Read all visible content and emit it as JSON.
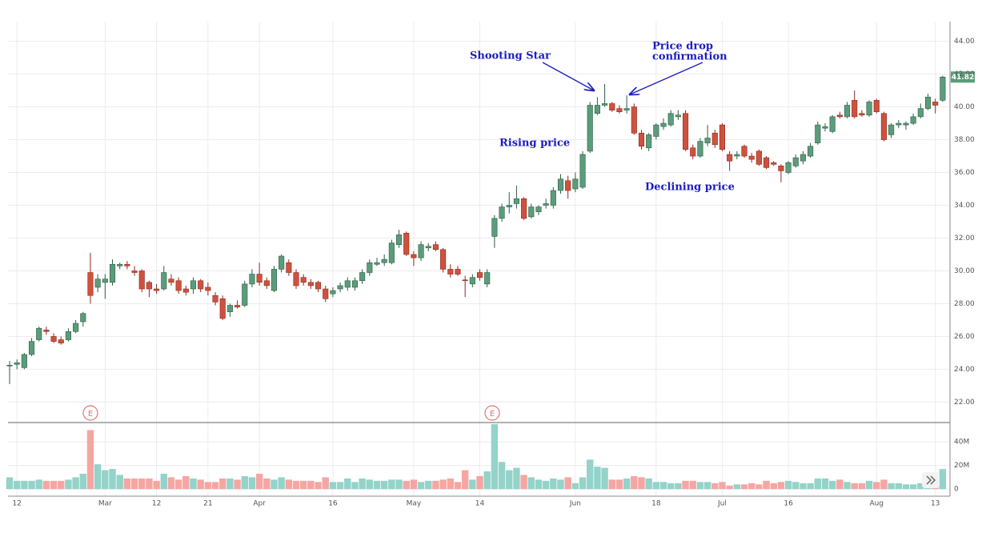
{
  "chart_data": [
    {
      "type": "candlestick",
      "up_color": "#5b9c7a",
      "down_color": "#d0513d",
      "ylim": [
        20.8,
        45.2
      ],
      "yticks": [
        {
          "value": 22,
          "label": "22.00"
        },
        {
          "value": 24,
          "label": "24.00"
        },
        {
          "value": 26,
          "label": "26.00"
        },
        {
          "value": 28,
          "label": "28.00"
        },
        {
          "value": 30,
          "label": "30.00"
        },
        {
          "value": 32,
          "label": "32.00"
        },
        {
          "value": 34,
          "label": "34.00"
        },
        {
          "value": 36,
          "label": "36.00"
        },
        {
          "value": 38,
          "label": "38.00"
        },
        {
          "value": 40,
          "label": "40.00"
        },
        {
          "value": 42,
          "label": "42.00"
        },
        {
          "value": 44,
          "label": "44.00"
        }
      ],
      "grid": true,
      "last_price": 41.82,
      "annotations": [
        "Shooting Star",
        "Price drop",
        "confirmation",
        "Rising price",
        "Declining price"
      ],
      "events": [
        "E",
        "E"
      ],
      "ohlc": [
        [
          24.2,
          24.5,
          23.1,
          24.25
        ],
        [
          24.3,
          24.6,
          24.0,
          24.4
        ],
        [
          24.1,
          25.0,
          24.0,
          24.9
        ],
        [
          24.9,
          25.9,
          24.8,
          25.7
        ],
        [
          25.8,
          26.6,
          25.7,
          26.5
        ],
        [
          26.4,
          26.6,
          26.1,
          26.3
        ],
        [
          26.0,
          26.2,
          25.6,
          25.7
        ],
        [
          25.8,
          26.0,
          25.5,
          25.6
        ],
        [
          25.8,
          26.5,
          25.7,
          26.3
        ],
        [
          26.3,
          27.0,
          26.2,
          26.8
        ],
        [
          26.9,
          27.5,
          26.6,
          27.4
        ],
        [
          29.9,
          31.1,
          28.0,
          28.5
        ],
        [
          29.0,
          29.8,
          28.7,
          29.5
        ],
        [
          29.3,
          29.8,
          28.3,
          29.5
        ],
        [
          29.3,
          30.7,
          29.1,
          30.4
        ],
        [
          30.3,
          30.5,
          30.1,
          30.4
        ],
        [
          30.4,
          30.6,
          30.1,
          30.3
        ],
        [
          30.0,
          30.3,
          29.7,
          29.9
        ],
        [
          30.0,
          30.1,
          28.7,
          28.9
        ],
        [
          29.3,
          29.4,
          28.4,
          28.9
        ],
        [
          28.9,
          29.2,
          28.6,
          28.8
        ],
        [
          28.9,
          30.3,
          28.8,
          29.9
        ],
        [
          29.5,
          29.8,
          29.1,
          29.3
        ],
        [
          29.4,
          29.6,
          28.6,
          28.8
        ],
        [
          28.9,
          29.1,
          28.5,
          28.7
        ],
        [
          28.9,
          29.6,
          28.6,
          29.4
        ],
        [
          29.4,
          29.5,
          28.7,
          28.9
        ],
        [
          29.0,
          29.3,
          28.5,
          28.8
        ],
        [
          28.5,
          28.7,
          27.9,
          28.1
        ],
        [
          28.3,
          28.5,
          27.0,
          27.1
        ],
        [
          27.5,
          28.0,
          27.2,
          27.9
        ],
        [
          27.9,
          28.2,
          27.7,
          27.8
        ],
        [
          27.9,
          29.4,
          27.8,
          29.2
        ],
        [
          29.2,
          30.1,
          29.0,
          29.8
        ],
        [
          29.8,
          30.5,
          29.1,
          29.3
        ],
        [
          29.4,
          29.6,
          28.9,
          29.1
        ],
        [
          28.8,
          30.3,
          28.7,
          30.1
        ],
        [
          30.1,
          31.0,
          29.9,
          30.9
        ],
        [
          30.5,
          30.7,
          29.7,
          29.9
        ],
        [
          29.9,
          30.1,
          28.9,
          29.1
        ],
        [
          29.6,
          29.8,
          29.1,
          29.3
        ],
        [
          29.3,
          29.5,
          28.9,
          29.1
        ],
        [
          29.3,
          29.4,
          28.7,
          28.9
        ],
        [
          28.9,
          29.1,
          28.1,
          28.3
        ],
        [
          28.6,
          29.0,
          28.4,
          28.8
        ],
        [
          28.9,
          29.3,
          28.7,
          29.1
        ],
        [
          29.0,
          29.6,
          28.8,
          29.4
        ],
        [
          29.0,
          29.6,
          28.8,
          29.4
        ],
        [
          29.4,
          30.1,
          29.2,
          29.9
        ],
        [
          29.9,
          30.7,
          29.7,
          30.5
        ],
        [
          30.4,
          30.8,
          30.3,
          30.5
        ],
        [
          30.5,
          31.0,
          30.3,
          30.7
        ],
        [
          30.5,
          31.9,
          30.4,
          31.7
        ],
        [
          31.6,
          32.5,
          31.4,
          32.2
        ],
        [
          32.3,
          32.4,
          30.9,
          31.0
        ],
        [
          31.0,
          31.2,
          30.3,
          30.8
        ],
        [
          30.8,
          31.8,
          30.6,
          31.6
        ],
        [
          31.4,
          31.7,
          31.2,
          31.5
        ],
        [
          31.6,
          31.8,
          31.2,
          31.3
        ],
        [
          31.3,
          31.4,
          29.9,
          30.1
        ],
        [
          30.1,
          30.4,
          29.6,
          29.8
        ],
        [
          30.1,
          30.3,
          29.7,
          29.8
        ],
        [
          29.45,
          29.7,
          28.4,
          29.4
        ],
        [
          29.2,
          29.8,
          29.0,
          29.6
        ],
        [
          29.9,
          30.1,
          29.4,
          29.6
        ],
        [
          29.2,
          30.1,
          29.0,
          29.9
        ],
        [
          32.1,
          33.4,
          31.4,
          33.2
        ],
        [
          33.2,
          34.1,
          33.0,
          33.9
        ],
        [
          33.9,
          34.8,
          33.5,
          34.0
        ],
        [
          34.1,
          35.2,
          33.8,
          34.4
        ],
        [
          34.4,
          34.5,
          33.1,
          33.2
        ],
        [
          33.3,
          34.1,
          33.2,
          33.9
        ],
        [
          33.6,
          34.0,
          33.4,
          33.9
        ],
        [
          34.0,
          34.4,
          33.8,
          34.1
        ],
        [
          34.0,
          35.1,
          33.8,
          34.9
        ],
        [
          34.9,
          35.9,
          34.7,
          35.6
        ],
        [
          35.5,
          35.8,
          34.4,
          34.9
        ],
        [
          35.0,
          36.0,
          34.8,
          35.6
        ],
        [
          35.1,
          37.3,
          35.0,
          37.1
        ],
        [
          37.3,
          40.3,
          37.2,
          40.1
        ],
        [
          39.6,
          40.6,
          39.5,
          40.1
        ],
        [
          40.1,
          41.4,
          40.0,
          40.2
        ],
        [
          40.2,
          40.3,
          39.7,
          39.8
        ],
        [
          39.9,
          40.1,
          39.6,
          39.7
        ],
        [
          39.8,
          40.7,
          39.6,
          39.9
        ],
        [
          40.0,
          40.2,
          38.3,
          38.4
        ],
        [
          38.4,
          38.6,
          37.4,
          37.6
        ],
        [
          37.5,
          38.4,
          37.3,
          38.3
        ],
        [
          38.2,
          39.0,
          38.0,
          38.9
        ],
        [
          38.8,
          39.3,
          38.6,
          39.0
        ],
        [
          38.9,
          39.8,
          38.8,
          39.6
        ],
        [
          39.4,
          39.8,
          39.2,
          39.5
        ],
        [
          39.6,
          39.8,
          37.3,
          37.4
        ],
        [
          37.5,
          37.7,
          36.8,
          37.0
        ],
        [
          37.0,
          38.1,
          36.9,
          37.9
        ],
        [
          37.8,
          38.9,
          37.6,
          38.1
        ],
        [
          38.4,
          38.6,
          37.5,
          37.7
        ],
        [
          38.9,
          39.0,
          37.3,
          37.4
        ],
        [
          37.1,
          37.3,
          36.1,
          36.7
        ],
        [
          37.0,
          37.3,
          36.8,
          37.1
        ],
        [
          37.6,
          37.7,
          36.9,
          37.0
        ],
        [
          37.0,
          37.2,
          36.6,
          36.8
        ],
        [
          37.3,
          37.4,
          36.4,
          36.5
        ],
        [
          36.9,
          37.0,
          36.2,
          36.3
        ],
        [
          36.6,
          36.7,
          36.4,
          36.5
        ],
        [
          36.4,
          36.5,
          35.4,
          36.1
        ],
        [
          36.0,
          36.7,
          35.9,
          36.6
        ],
        [
          36.4,
          37.1,
          36.3,
          36.9
        ],
        [
          36.7,
          37.3,
          36.5,
          37.1
        ],
        [
          37.0,
          37.8,
          36.9,
          37.6
        ],
        [
          37.8,
          39.1,
          37.7,
          38.9
        ],
        [
          38.7,
          39.0,
          38.5,
          38.8
        ],
        [
          38.5,
          39.5,
          38.4,
          39.4
        ],
        [
          39.5,
          39.7,
          39.3,
          39.4
        ],
        [
          39.4,
          40.3,
          39.3,
          40.1
        ],
        [
          40.4,
          41.0,
          39.3,
          39.4
        ],
        [
          39.6,
          39.8,
          39.4,
          39.5
        ],
        [
          39.5,
          40.4,
          39.4,
          40.3
        ],
        [
          40.4,
          40.5,
          39.6,
          39.7
        ],
        [
          39.6,
          39.7,
          37.9,
          38.0
        ],
        [
          38.3,
          39.0,
          38.1,
          38.9
        ],
        [
          38.9,
          39.2,
          38.7,
          39.0
        ],
        [
          38.9,
          39.1,
          38.6,
          39.0
        ],
        [
          39.0,
          39.6,
          38.9,
          39.4
        ],
        [
          39.4,
          40.2,
          39.3,
          39.9
        ],
        [
          39.9,
          40.8,
          39.8,
          40.6
        ],
        [
          40.3,
          40.5,
          39.6,
          40.1
        ],
        [
          40.4,
          41.9,
          40.3,
          41.82
        ]
      ]
    },
    {
      "type": "bar",
      "up_color": "#93d3c9",
      "down_color": "#f5a6a2",
      "ylim": [
        -6,
        55
      ],
      "yticks": [
        0,
        {
          "value": 20,
          "label": "20M"
        },
        {
          "value": 40,
          "label": "40M"
        }
      ],
      "categories": [
        null,
        "12",
        null,
        null,
        null,
        null,
        null,
        null,
        null,
        null,
        null,
        null,
        null,
        "Mar",
        null,
        null,
        null,
        null,
        null,
        null,
        "12",
        null,
        null,
        null,
        null,
        null,
        null,
        "21",
        null,
        null,
        null,
        null,
        null,
        null,
        "Apr",
        null,
        null,
        null,
        null,
        null,
        null,
        null,
        null,
        null,
        "16",
        null,
        null,
        null,
        null,
        null,
        null,
        null,
        null,
        null,
        null,
        "May",
        null,
        null,
        null,
        null,
        null,
        null,
        null,
        null,
        "14",
        null,
        null,
        null,
        null,
        null,
        null,
        null,
        null,
        null,
        null,
        null,
        null,
        "Jun",
        null,
        null,
        null,
        null,
        null,
        null,
        null,
        null,
        null,
        null,
        "18",
        null,
        null,
        null,
        null,
        null,
        null,
        null,
        null,
        "Jul",
        null,
        null,
        null,
        null,
        null,
        null,
        null,
        null,
        "16",
        null,
        null,
        null,
        null,
        null,
        null,
        null,
        null,
        null,
        null,
        null,
        "Aug",
        null,
        null,
        null,
        null,
        null,
        null,
        null,
        "13",
        null
      ],
      "values": [
        10,
        7,
        7,
        7,
        8,
        7,
        7,
        7,
        8,
        10,
        13,
        50,
        21,
        16,
        17,
        12,
        9,
        9,
        9,
        9,
        7,
        13,
        10,
        8,
        11,
        9,
        8,
        6,
        6,
        9,
        9,
        8,
        11,
        10,
        13,
        9,
        8,
        10,
        8,
        7,
        7,
        7,
        6,
        10,
        6,
        6,
        9,
        6,
        9,
        8,
        7,
        7,
        8,
        8,
        7,
        8,
        6,
        7,
        7,
        8,
        9,
        6,
        16,
        8,
        11,
        15,
        55,
        23,
        16,
        18,
        12,
        10,
        8,
        7,
        9,
        8,
        10,
        5,
        10,
        25,
        19,
        18,
        8,
        8,
        9,
        11,
        10,
        9,
        6,
        6,
        5,
        5,
        7,
        7,
        6,
        6,
        5,
        6,
        3,
        4,
        4,
        5,
        4,
        7,
        5,
        6,
        7,
        6,
        5,
        5,
        9,
        9,
        7,
        8,
        6,
        5,
        5,
        7,
        6,
        8,
        5,
        5,
        4,
        4,
        5,
        6,
        7,
        17
      ]
    }
  ]
}
